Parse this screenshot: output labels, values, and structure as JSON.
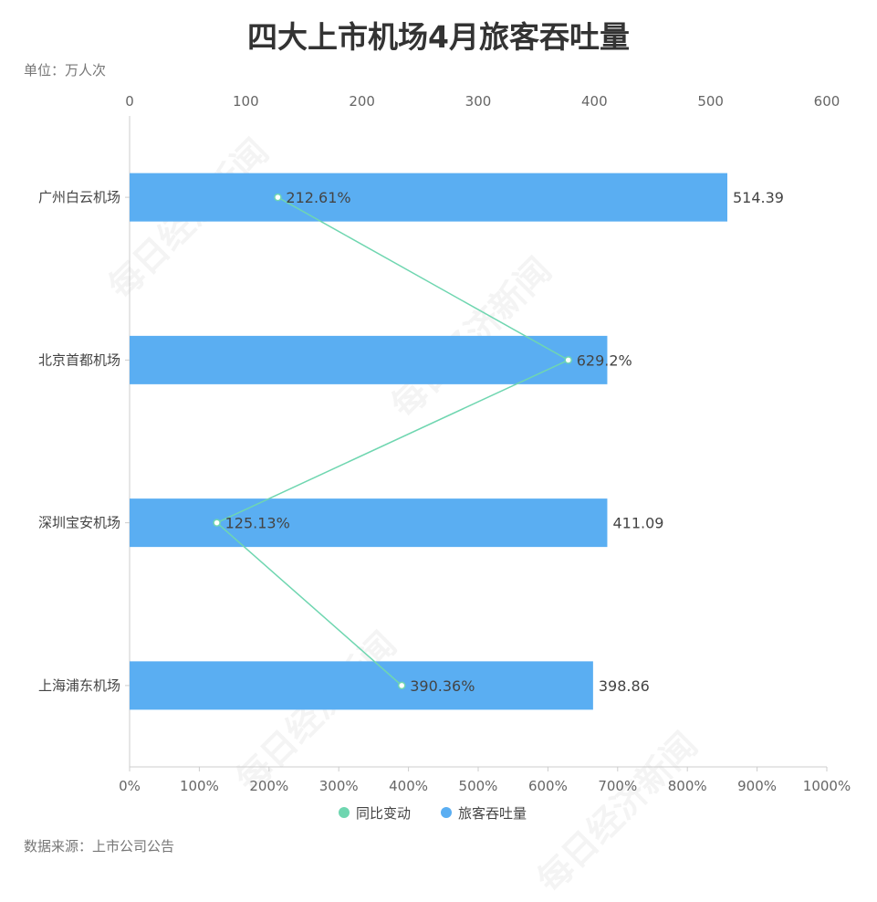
{
  "title": "四大上市机场4月旅客吞吐量",
  "unit_label": "单位：万人次",
  "source_label": "数据来源：上市公司公告",
  "watermark": "每日经济新闻",
  "chart_data": {
    "type": "bar",
    "orientation": "horizontal",
    "categories": [
      "广州白云机场",
      "北京首都机场",
      "深圳宝安机场",
      "上海浦东机场"
    ],
    "series": [
      {
        "name": "旅客吞吐量",
        "type": "bar",
        "axis": "top",
        "color": "#5aaef2",
        "values": [
          514.39,
          411.09,
          411.09,
          398.86
        ],
        "labels": [
          "514.39",
          "",
          "411.09",
          "398.86"
        ]
      },
      {
        "name": "同比变动",
        "type": "line",
        "axis": "bottom",
        "color": "#6fd6b0",
        "values": [
          212.61,
          629.2,
          125.13,
          390.36
        ],
        "labels": [
          "212.61%",
          "629.2%",
          "125.13%",
          "390.36%"
        ]
      }
    ],
    "top_axis": {
      "range": [
        0,
        600
      ],
      "ticks": [
        "0",
        "100",
        "200",
        "300",
        "400",
        "500",
        "600"
      ]
    },
    "bottom_axis": {
      "range": [
        0,
        1000
      ],
      "ticks": [
        "0%",
        "100%",
        "200%",
        "300%",
        "400%",
        "500%",
        "600%",
        "700%",
        "800%",
        "900%",
        "1000%"
      ]
    },
    "grid": false,
    "legend_position": "bottom"
  }
}
